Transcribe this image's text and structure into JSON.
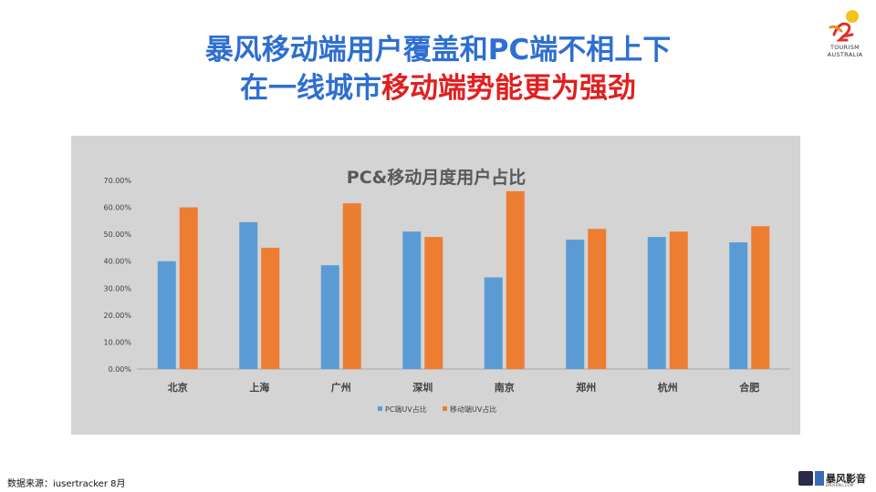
{
  "headline": {
    "line1": "暴风移动端用户覆盖和PC端不相上下",
    "line2_blue": "在一线城市",
    "line2_red": "移动端势能更为强劲"
  },
  "logo": {
    "line1": "TOURISM",
    "line2": "AUSTRALIA"
  },
  "footer": {
    "source": "数据来源：iusertracker 8月",
    "brand_name": "暴风影音",
    "brand_url": "BAOFENG.COM"
  },
  "colors": {
    "headline_blue": "#2e6fd0",
    "headline_red": "#e02020",
    "pc_series": "#5b9bd5",
    "mobile_series": "#ed7d31",
    "chart_bg": "#d4d4d4"
  },
  "chart_data": {
    "type": "bar",
    "title": "PC&移动月度用户占比",
    "categories": [
      "北京",
      "上海",
      "广州",
      "深圳",
      "南京",
      "郑州",
      "杭州",
      "合肥"
    ],
    "series": [
      {
        "name": "PC端UV占比",
        "color": "#5b9bd5",
        "values": [
          40.0,
          54.5,
          38.5,
          51.0,
          34.0,
          48.0,
          49.0,
          47.0
        ]
      },
      {
        "name": "移动端UV占比",
        "color": "#ed7d31",
        "values": [
          60.0,
          45.0,
          61.5,
          49.0,
          66.0,
          52.0,
          51.0,
          53.0
        ]
      }
    ],
    "ylim": [
      0,
      70
    ],
    "yticks": [
      "0.00%",
      "10.00%",
      "20.00%",
      "30.00%",
      "40.00%",
      "50.00%",
      "60.00%",
      "70.00%"
    ],
    "xlabel": "",
    "ylabel": "",
    "grid": false,
    "legend": "bottom"
  }
}
